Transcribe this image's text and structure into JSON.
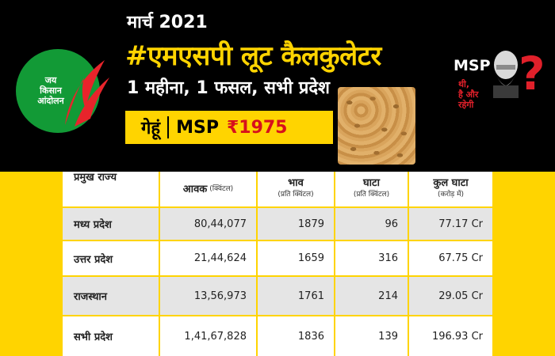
{
  "header": {
    "month": "मार्च 2021",
    "title": "#एमएसपी लूट कैलकुलेटर",
    "subtitle": "1 महीना, 1 फसल, सभी प्रदेश",
    "crop": "गेहूं",
    "msp_label": "MSP",
    "msp_value": "₹1975"
  },
  "logo": {
    "line1": "जय",
    "line2": "किसान",
    "line3": "आंदोलन",
    "color": "#129a36",
    "accent": "#e8242b"
  },
  "badge": {
    "msp": "MSP",
    "line1": "थी,",
    "line2": "है और",
    "line3": "रहेगी",
    "question": "?"
  },
  "table": {
    "headers": {
      "state": "प्रमुख राज्य",
      "arrival": "आवक",
      "arrival_unit": "(क्विंटल)",
      "price": "भाव",
      "price_unit": "(प्रति क्विंटल)",
      "loss": "घाटा",
      "loss_unit": "(प्रति क्विंटल)",
      "total": "कुल घाटा",
      "total_unit": "(करोड़ में)"
    },
    "rows": [
      {
        "state": "मध्य प्रदेश",
        "arrival": "80,44,077",
        "price": "1879",
        "loss": "96",
        "total": "77.17 Cr"
      },
      {
        "state": "उत्तर प्रदेश",
        "arrival": "21,44,624",
        "price": "1659",
        "loss": "316",
        "total": "67.75 Cr"
      },
      {
        "state": "राजस्थान",
        "arrival": "13,56,973",
        "price": "1761",
        "loss": "214",
        "total": "29.05 Cr"
      },
      {
        "state": "सभी प्रदेश",
        "arrival": "1,41,67,828",
        "price": "1836",
        "loss": "139",
        "total": "196.93 Cr"
      }
    ]
  }
}
